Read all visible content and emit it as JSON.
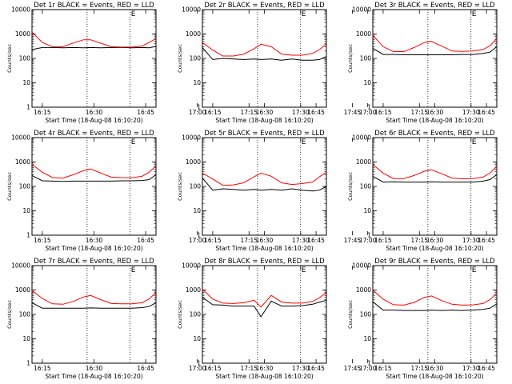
{
  "chart_data": {
    "type": "line",
    "yscale": "log",
    "ylim": [
      1,
      10000
    ],
    "ylabel": "Counts/sec",
    "xlabel": "Start Time (18-Aug-08 16:10:20)",
    "xticks": [
      "16:15",
      "16:30",
      "16:45",
      "17:00",
      "17:15",
      "17:30",
      "17:45"
    ],
    "yticks": [
      "1",
      "10",
      "100",
      "1000",
      "10000"
    ],
    "xrange_minutes": [
      12,
      48
    ],
    "vlines_minutes": [
      28,
      40.5
    ],
    "e_marker": "E",
    "series_colors": {
      "events": "#000000",
      "lld": "#ff0000"
    },
    "panels": [
      {
        "title": "Det 1r BLACK = Events, RED = LLD",
        "x": [
          12,
          15,
          18,
          21,
          24,
          27,
          29,
          32,
          35,
          38,
          41,
          44,
          46,
          48
        ],
        "events": [
          230,
          280,
          280,
          270,
          280,
          270,
          280,
          270,
          280,
          280,
          270,
          280,
          270,
          310
        ],
        "lld": [
          1200,
          450,
          300,
          300,
          430,
          580,
          580,
          420,
          300,
          290,
          290,
          320,
          450,
          650
        ]
      },
      {
        "title": "Det 2r BLACK = Events, RED = LLD",
        "x": [
          12,
          15,
          18,
          21,
          24,
          27,
          29,
          32,
          35,
          38,
          41,
          44,
          46,
          48
        ],
        "events": [
          280,
          90,
          100,
          95,
          90,
          95,
          90,
          95,
          85,
          95,
          85,
          85,
          90,
          120
        ],
        "lld": [
          450,
          220,
          125,
          125,
          150,
          250,
          380,
          300,
          150,
          135,
          135,
          160,
          230,
          400
        ]
      },
      {
        "title": "Det 3r BLACK = Events, RED = LLD",
        "x": [
          12,
          15,
          18,
          21,
          24,
          27,
          29,
          32,
          35,
          38,
          41,
          44,
          46,
          48
        ],
        "events": [
          260,
          145,
          145,
          140,
          140,
          140,
          140,
          140,
          140,
          145,
          145,
          160,
          180,
          300
        ],
        "lld": [
          900,
          300,
          190,
          190,
          280,
          450,
          500,
          320,
          200,
          195,
          200,
          230,
          330,
          650
        ]
      },
      {
        "title": "Det 4r BLACK = Events, RED = LLD",
        "x": [
          12,
          15,
          18,
          21,
          24,
          27,
          29,
          32,
          35,
          38,
          41,
          44,
          46,
          48
        ],
        "events": [
          280,
          170,
          165,
          160,
          165,
          165,
          165,
          165,
          165,
          170,
          170,
          175,
          190,
          300
        ],
        "lld": [
          800,
          380,
          230,
          220,
          300,
          450,
          520,
          350,
          240,
          230,
          225,
          260,
          380,
          700
        ]
      },
      {
        "title": "Det 5r BLACK = Events, RED = LLD",
        "x": [
          12,
          15,
          18,
          21,
          24,
          27,
          29,
          32,
          35,
          38,
          41,
          44,
          46,
          48
        ],
        "events": [
          220,
          70,
          80,
          75,
          70,
          75,
          70,
          75,
          70,
          80,
          70,
          65,
          70,
          100
        ],
        "lld": [
          350,
          200,
          110,
          115,
          140,
          250,
          350,
          260,
          140,
          120,
          130,
          150,
          250,
          380
        ]
      },
      {
        "title": "Det 6r BLACK = Events, RED = LLD",
        "x": [
          12,
          15,
          18,
          21,
          24,
          27,
          29,
          32,
          35,
          38,
          41,
          44,
          46,
          48
        ],
        "events": [
          260,
          150,
          155,
          150,
          150,
          150,
          155,
          150,
          150,
          150,
          150,
          165,
          190,
          300
        ],
        "lld": [
          800,
          350,
          210,
          210,
          280,
          420,
          480,
          330,
          220,
          205,
          210,
          240,
          350,
          650
        ]
      },
      {
        "title": "Det 7r BLACK = Events, RED = LLD",
        "x": [
          12,
          15,
          18,
          21,
          24,
          27,
          29,
          32,
          35,
          38,
          41,
          44,
          46,
          48
        ],
        "events": [
          300,
          180,
          180,
          180,
          180,
          180,
          185,
          180,
          180,
          180,
          180,
          190,
          210,
          300
        ],
        "lld": [
          950,
          450,
          270,
          260,
          340,
          520,
          600,
          400,
          280,
          270,
          270,
          300,
          430,
          800
        ]
      },
      {
        "title": "Det 8r BLACK = Events, RED = LLD",
        "x": [
          12,
          15,
          18,
          21,
          24,
          27,
          29,
          32,
          35,
          38,
          41,
          44,
          46,
          48
        ],
        "events": [
          500,
          250,
          240,
          220,
          220,
          220,
          80,
          350,
          220,
          220,
          230,
          260,
          320,
          380
        ],
        "lld": [
          1100,
          420,
          290,
          280,
          300,
          380,
          200,
          600,
          320,
          290,
          290,
          340,
          480,
          800
        ]
      },
      {
        "title": "Det 9r BLACK = Events, RED = LLD",
        "x": [
          12,
          15,
          18,
          21,
          24,
          27,
          29,
          32,
          35,
          38,
          41,
          44,
          46,
          48
        ],
        "events": [
          330,
          150,
          150,
          145,
          145,
          145,
          150,
          145,
          150,
          145,
          150,
          160,
          180,
          270
        ],
        "lld": [
          1000,
          420,
          250,
          240,
          310,
          500,
          570,
          370,
          260,
          240,
          245,
          280,
          400,
          750
        ]
      }
    ]
  }
}
